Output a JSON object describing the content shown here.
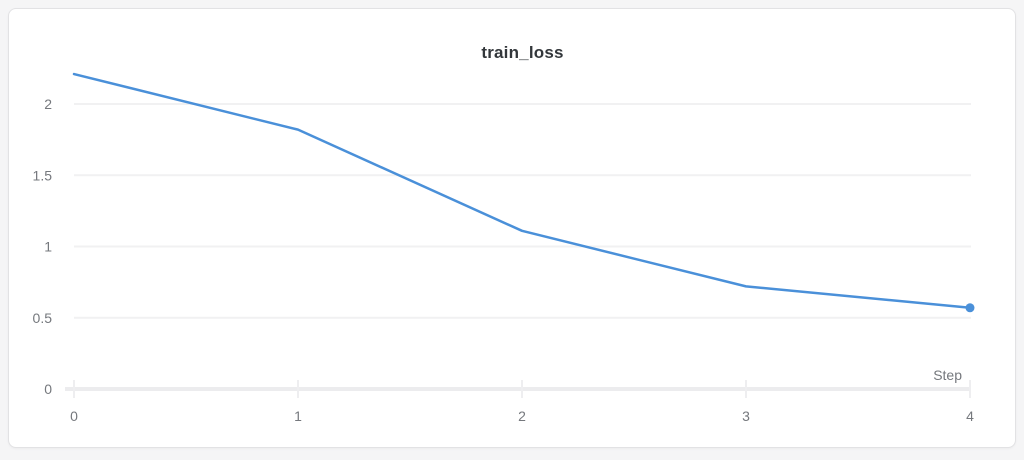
{
  "panel": {
    "title": "train_loss"
  },
  "chart_data": {
    "type": "line",
    "title": "train_loss",
    "xlabel": "Step",
    "ylabel": "",
    "x": [
      0,
      1,
      2,
      3,
      4
    ],
    "series": [
      {
        "name": "train_loss",
        "values": [
          2.21,
          1.82,
          1.11,
          0.72,
          0.57
        ]
      }
    ],
    "x_tick_labels": [
      "0",
      "1",
      "2",
      "3",
      "4"
    ],
    "y_ticks": [
      {
        "value": 0,
        "label": "0"
      },
      {
        "value": 0.5,
        "label": "0.5"
      },
      {
        "value": 1,
        "label": "1"
      },
      {
        "value": 1.5,
        "label": "1.5"
      },
      {
        "value": 2,
        "label": "2"
      }
    ],
    "xlim": [
      0,
      4
    ],
    "ylim": [
      0,
      2.33
    ],
    "grid": "horizontal-only",
    "legend": "none",
    "marker": "last-point-only",
    "colors": {
      "line": "#4a90d9",
      "gridline": "#f1f1f2",
      "axis_line": "#ececee",
      "axis_tick": "#eeeef0",
      "tick_label": "#75787d",
      "title": "#33373b",
      "xaxis_title": "#75787d"
    }
  }
}
